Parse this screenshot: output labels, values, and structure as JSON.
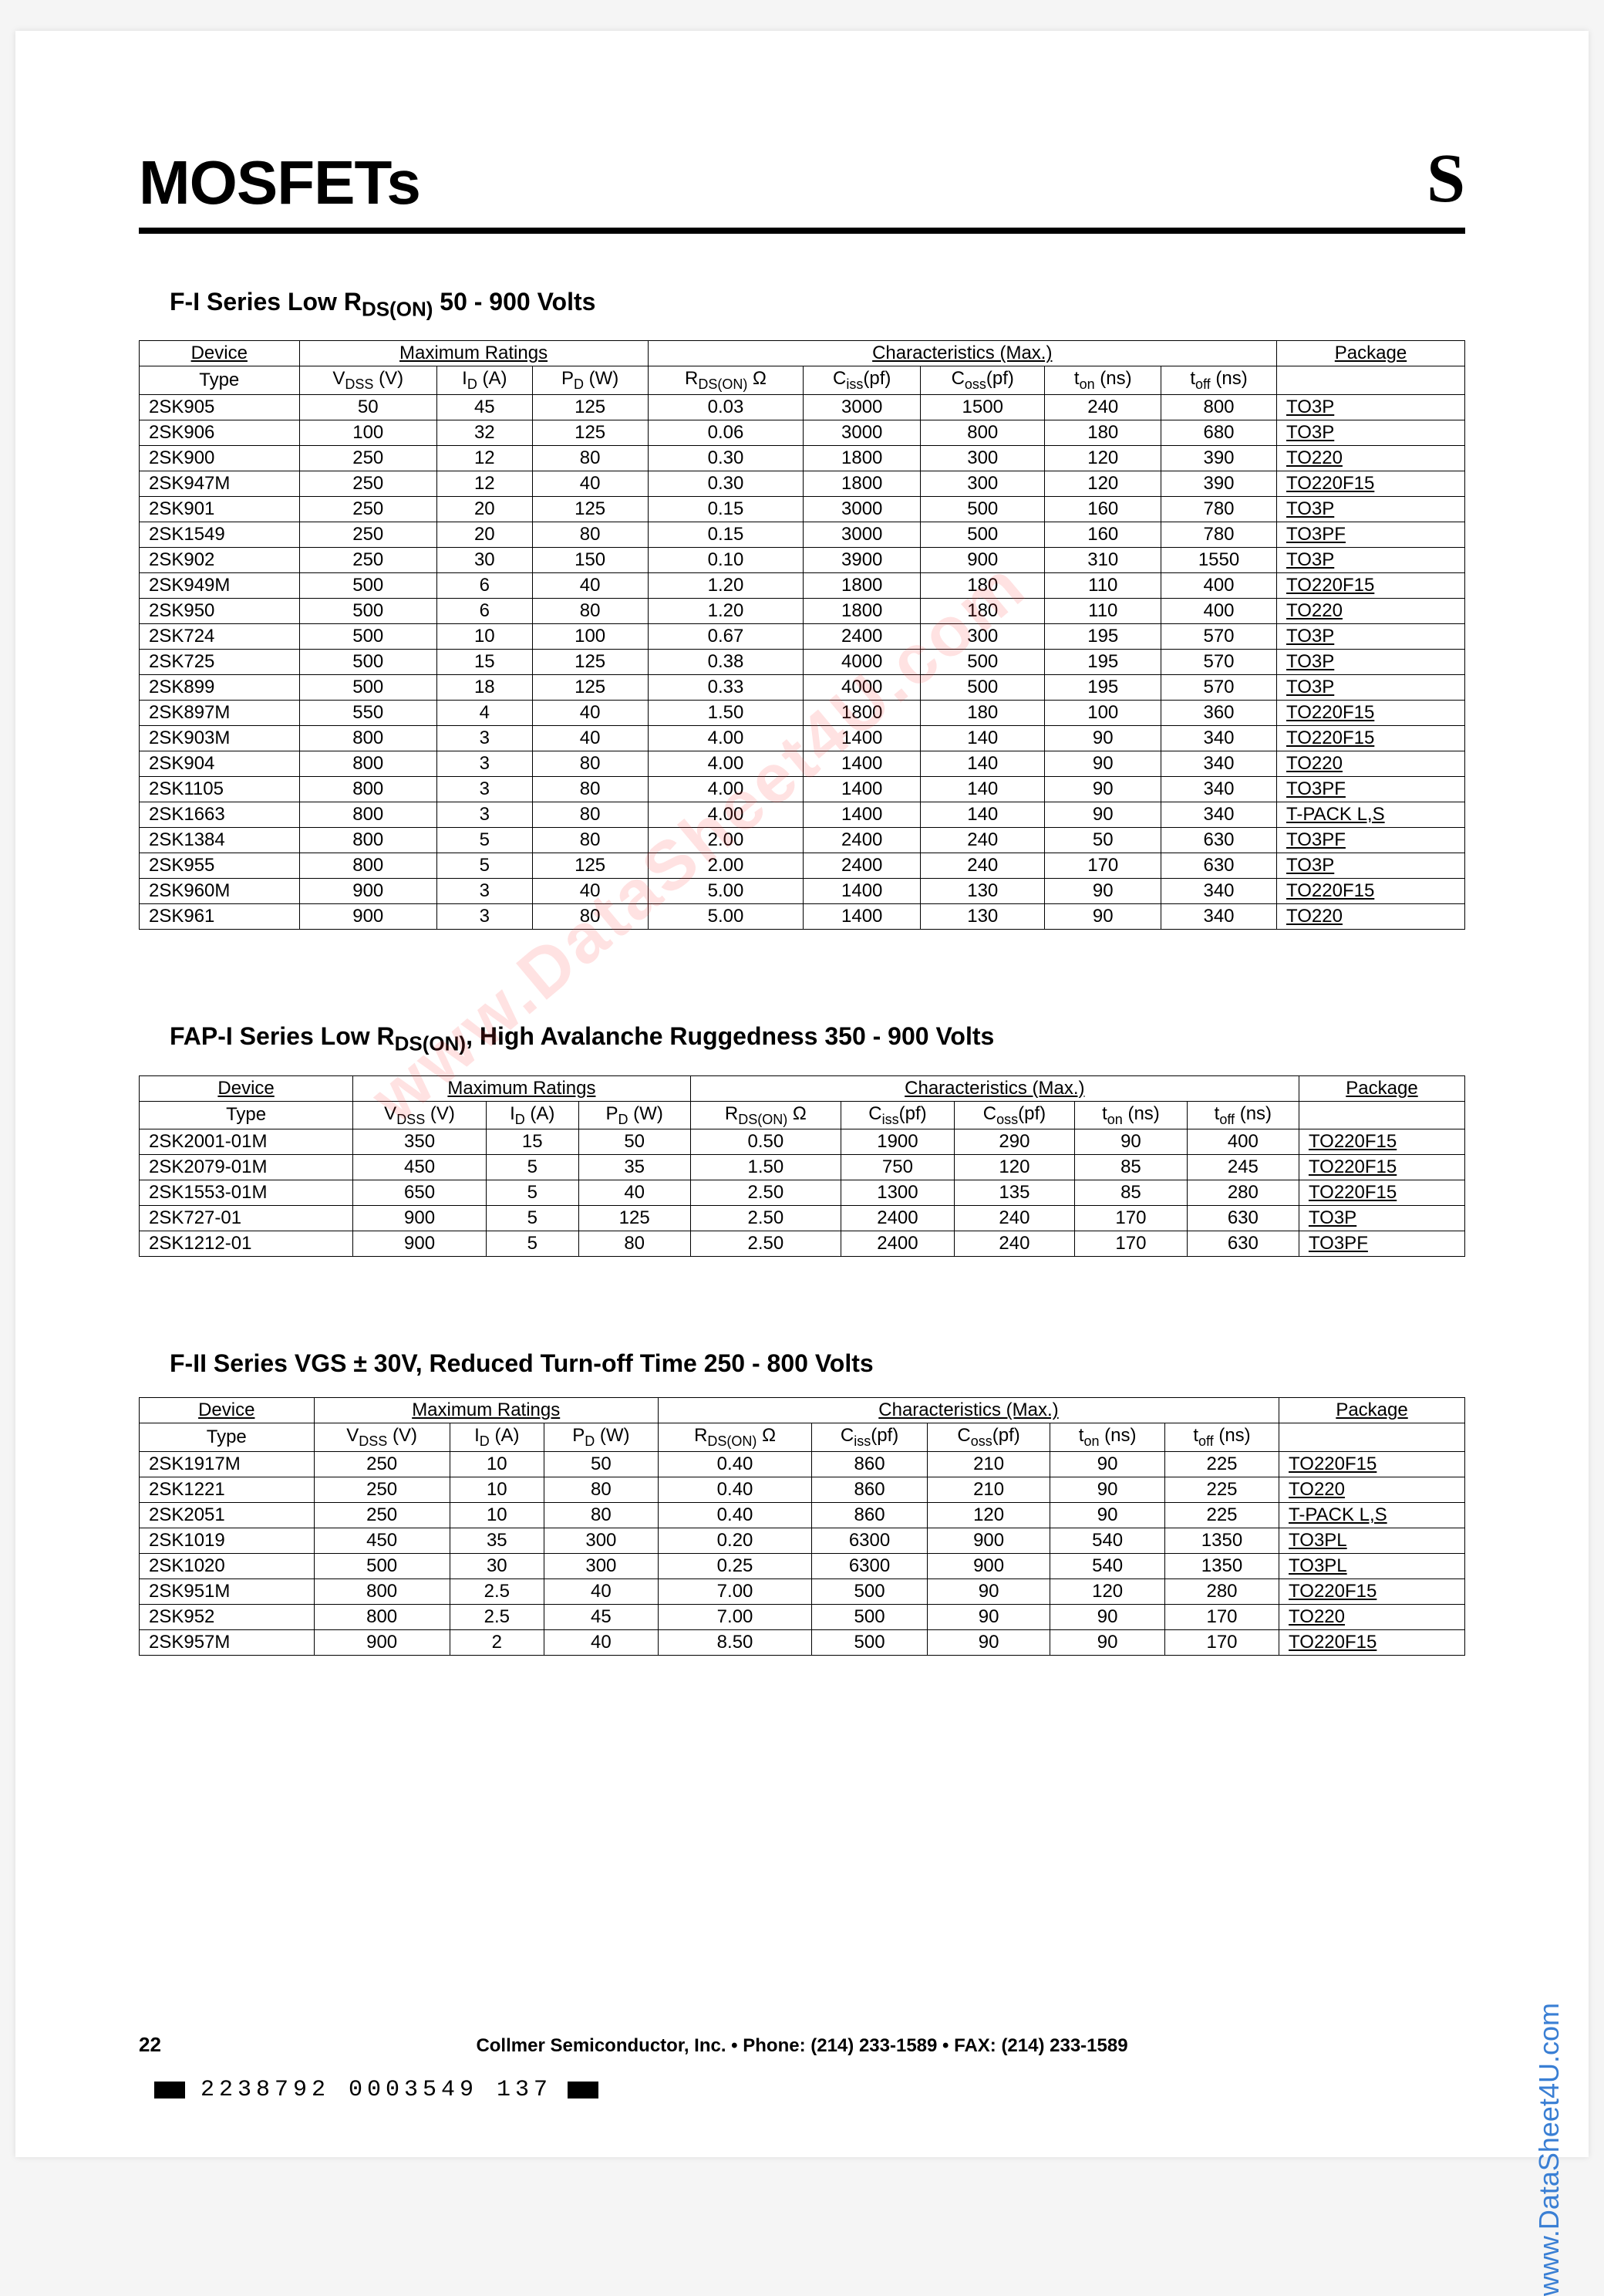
{
  "page_title": "MOSFETs",
  "logo_char": "S",
  "watermark_text": "www.DataSheet4U.com",
  "side_watermark": "www.DataSheet4U.com",
  "footer_text": "Collmer Semiconductor, Inc. • Phone: (214) 233-1589 • FAX: (214) 233-1589",
  "page_number": "22",
  "barcode_text": "2238792 0003549 137",
  "columns": {
    "group1": "Device",
    "group2": "Maximum Ratings",
    "group3": "Characteristics (Max.)",
    "group4": "Package",
    "c1": "Type",
    "c2": "VDSS (V)",
    "c3": "ID (A)",
    "c4": "PD (W)",
    "c5": "RDS(ON) Ω",
    "c6": "Ciss(pf)",
    "c7": "Coss(pf)",
    "c8": "ton (ns)",
    "c9": "toff (ns)"
  },
  "section1": {
    "title_prefix": "F-I Series Low R",
    "title_sub": "DS(ON)",
    "title_suffix": " 50 - 900 Volts",
    "rows": [
      [
        "2SK905",
        "50",
        "45",
        "125",
        "0.03",
        "3000",
        "1500",
        "240",
        "800",
        "TO3P"
      ],
      [
        "2SK906",
        "100",
        "32",
        "125",
        "0.06",
        "3000",
        "800",
        "180",
        "680",
        "TO3P"
      ],
      [
        "2SK900",
        "250",
        "12",
        "80",
        "0.30",
        "1800",
        "300",
        "120",
        "390",
        "TO220"
      ],
      [
        "2SK947M",
        "250",
        "12",
        "40",
        "0.30",
        "1800",
        "300",
        "120",
        "390",
        "TO220F15"
      ],
      [
        "2SK901",
        "250",
        "20",
        "125",
        "0.15",
        "3000",
        "500",
        "160",
        "780",
        "TO3P"
      ],
      [
        "2SK1549",
        "250",
        "20",
        "80",
        "0.15",
        "3000",
        "500",
        "160",
        "780",
        "TO3PF"
      ],
      [
        "2SK902",
        "250",
        "30",
        "150",
        "0.10",
        "3900",
        "900",
        "310",
        "1550",
        "TO3P"
      ],
      [
        "2SK949M",
        "500",
        "6",
        "40",
        "1.20",
        "1800",
        "180",
        "110",
        "400",
        "TO220F15"
      ],
      [
        "2SK950",
        "500",
        "6",
        "80",
        "1.20",
        "1800",
        "180",
        "110",
        "400",
        "TO220"
      ],
      [
        "2SK724",
        "500",
        "10",
        "100",
        "0.67",
        "2400",
        "300",
        "195",
        "570",
        "TO3P"
      ],
      [
        "2SK725",
        "500",
        "15",
        "125",
        "0.38",
        "4000",
        "500",
        "195",
        "570",
        "TO3P"
      ],
      [
        "2SK899",
        "500",
        "18",
        "125",
        "0.33",
        "4000",
        "500",
        "195",
        "570",
        "TO3P"
      ],
      [
        "2SK897M",
        "550",
        "4",
        "40",
        "1.50",
        "1800",
        "180",
        "100",
        "360",
        "TO220F15"
      ],
      [
        "2SK903M",
        "800",
        "3",
        "40",
        "4.00",
        "1400",
        "140",
        "90",
        "340",
        "TO220F15"
      ],
      [
        "2SK904",
        "800",
        "3",
        "80",
        "4.00",
        "1400",
        "140",
        "90",
        "340",
        "TO220"
      ],
      [
        "2SK1105",
        "800",
        "3",
        "80",
        "4.00",
        "1400",
        "140",
        "90",
        "340",
        "TO3PF"
      ],
      [
        "2SK1663",
        "800",
        "3",
        "80",
        "4.00",
        "1400",
        "140",
        "90",
        "340",
        "T-PACK L,S"
      ],
      [
        "2SK1384",
        "800",
        "5",
        "80",
        "2.00",
        "2400",
        "240",
        "50",
        "630",
        "TO3PF"
      ],
      [
        "2SK955",
        "800",
        "5",
        "125",
        "2.00",
        "2400",
        "240",
        "170",
        "630",
        "TO3P"
      ],
      [
        "2SK960M",
        "900",
        "3",
        "40",
        "5.00",
        "1400",
        "130",
        "90",
        "340",
        "TO220F15"
      ],
      [
        "2SK961",
        "900",
        "3",
        "80",
        "5.00",
        "1400",
        "130",
        "90",
        "340",
        "TO220"
      ]
    ]
  },
  "section2": {
    "title_prefix": "FAP-I Series Low R",
    "title_sub": "DS(ON)",
    "title_suffix": ", High Avalanche Ruggedness 350 - 900 Volts",
    "rows": [
      [
        "2SK2001-01M",
        "350",
        "15",
        "50",
        "0.50",
        "1900",
        "290",
        "90",
        "400",
        "TO220F15"
      ],
      [
        "2SK2079-01M",
        "450",
        "5",
        "35",
        "1.50",
        "750",
        "120",
        "85",
        "245",
        "TO220F15"
      ],
      [
        "2SK1553-01M",
        "650",
        "5",
        "40",
        "2.50",
        "1300",
        "135",
        "85",
        "280",
        "TO220F15"
      ],
      [
        "2SK727-01",
        "900",
        "5",
        "125",
        "2.50",
        "2400",
        "240",
        "170",
        "630",
        "TO3P"
      ],
      [
        "2SK1212-01",
        "900",
        "5",
        "80",
        "2.50",
        "2400",
        "240",
        "170",
        "630",
        "TO3PF"
      ]
    ]
  },
  "section3": {
    "title_full": "F-II Series VGS ± 30V,  Reduced Turn-off Time 250 - 800 Volts",
    "rows": [
      [
        "2SK1917M",
        "250",
        "10",
        "50",
        "0.40",
        "860",
        "210",
        "90",
        "225",
        "TO220F15"
      ],
      [
        "2SK1221",
        "250",
        "10",
        "80",
        "0.40",
        "860",
        "210",
        "90",
        "225",
        "TO220"
      ],
      [
        "2SK2051",
        "250",
        "10",
        "80",
        "0.40",
        "860",
        "120",
        "90",
        "225",
        "T-PACK L,S"
      ],
      [
        "2SK1019",
        "450",
        "35",
        "300",
        "0.20",
        "6300",
        "900",
        "540",
        "1350",
        "TO3PL"
      ],
      [
        "2SK1020",
        "500",
        "30",
        "300",
        "0.25",
        "6300",
        "900",
        "540",
        "1350",
        "TO3PL"
      ],
      [
        "2SK951M",
        "800",
        "2.5",
        "40",
        "7.00",
        "500",
        "90",
        "120",
        "280",
        "TO220F15"
      ],
      [
        "2SK952",
        "800",
        "2.5",
        "45",
        "7.00",
        "500",
        "90",
        "90",
        "170",
        "TO220"
      ],
      [
        "2SK957M",
        "900",
        "2",
        "40",
        "8.50",
        "500",
        "90",
        "90",
        "170",
        "TO220F15"
      ]
    ]
  }
}
